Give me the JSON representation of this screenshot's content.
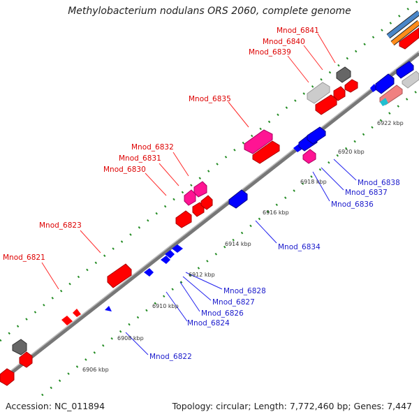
{
  "title": "Methylobacterium nodulans ORS 2060, complete genome",
  "accession": "Accession: NC_011894",
  "summary": "Topology: circular; Length: 7,772,460 bp; Genes: 7,447",
  "colors": {
    "forward": "#ff0000",
    "reverse": "#0000ff",
    "rna": "#ff1493",
    "pseudo": "#777777",
    "backbone": "#808080",
    "ruler": "#228b22"
  },
  "top_labels": [
    "Mnod_6841",
    "Mnod_6840",
    "Mnod_6839",
    "Mnod_6835",
    "Mnod_6832",
    "Mnod_6831",
    "Mnod_6830",
    "Mnod_6823",
    "Mnod_6821"
  ],
  "bottom_labels": [
    "Mnod_6838",
    "Mnod_6837",
    "Mnod_6836",
    "Mnod_6834",
    "Mnod_6828",
    "Mnod_6827",
    "Mnod_6826",
    "Mnod_6824",
    "Mnod_6822"
  ],
  "kbp_ticks": [
    "6906 kbp",
    "6908 kbp",
    "6910 kbp",
    "6912 kbp",
    "6914 kbp",
    "6916 kbp",
    "6918 kbp",
    "6920 kbp",
    "6922 kbp"
  ]
}
